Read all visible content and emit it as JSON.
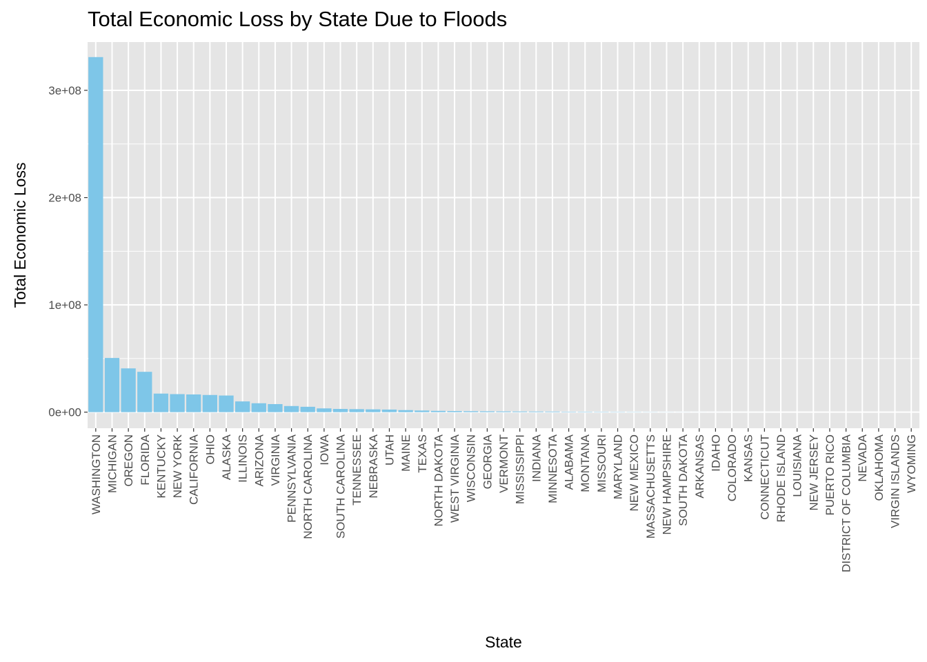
{
  "chart_data": {
    "type": "bar",
    "title": "Total Economic Loss by State Due to Floods",
    "xlabel": "State",
    "ylabel": "Total Economic Loss",
    "ylim": [
      -15000000,
      345000000
    ],
    "yticks": [
      0,
      100000000,
      200000000,
      300000000
    ],
    "ytick_labels": [
      "0e+00",
      "1e+08",
      "2e+08",
      "3e+08"
    ],
    "grid": true,
    "bar_color": "#7EC6E8",
    "panel_color": "#E5E5E5",
    "grid_color": "#FFFFFF",
    "categories": [
      "WASHINGTON",
      "MICHIGAN",
      "OREGON",
      "FLORIDA",
      "KENTUCKY",
      "NEW YORK",
      "CALIFORNIA",
      "OHIO",
      "ALASKA",
      "ILLINOIS",
      "ARIZONA",
      "VIRGINIA",
      "PENNSYLVANIA",
      "NORTH CAROLINA",
      "IOWA",
      "SOUTH CAROLINA",
      "TENNESSEE",
      "NEBRASKA",
      "UTAH",
      "MAINE",
      "TEXAS",
      "NORTH DAKOTA",
      "WEST VIRGINIA",
      "WISCONSIN",
      "GEORGIA",
      "VERMONT",
      "MISSISSIPPI",
      "INDIANA",
      "MINNESOTA",
      "ALABAMA",
      "MONTANA",
      "MISSOURI",
      "MARYLAND",
      "NEW MEXICO",
      "MASSACHUSETTS",
      "NEW HAMPSHIRE",
      "SOUTH DAKOTA",
      "ARKANSAS",
      "IDAHO",
      "COLORADO",
      "KANSAS",
      "CONNECTICUT",
      "RHODE ISLAND",
      "LOUISIANA",
      "NEW JERSEY",
      "PUERTO RICO",
      "DISTRICT OF COLUMBIA",
      "NEVADA",
      "OKLAHOMA",
      "VIRGIN ISLANDS",
      "WYOMING"
    ],
    "values": [
      331000000,
      50500000,
      40800000,
      37600000,
      17300000,
      16800000,
      16500000,
      16000000,
      15500000,
      10000000,
      8300000,
      7500000,
      5700000,
      5000000,
      3500000,
      3000000,
      2800000,
      2600000,
      2400000,
      1900000,
      1500000,
      1200000,
      1000000,
      900000,
      800000,
      700000,
      650000,
      600000,
      550000,
      400000,
      350000,
      300000,
      250000,
      200000,
      150000,
      100000,
      80000,
      50000,
      30000,
      20000,
      15000,
      10000,
      8000,
      6000,
      5000,
      4000,
      3000,
      2000,
      1500,
      1000,
      500
    ]
  }
}
